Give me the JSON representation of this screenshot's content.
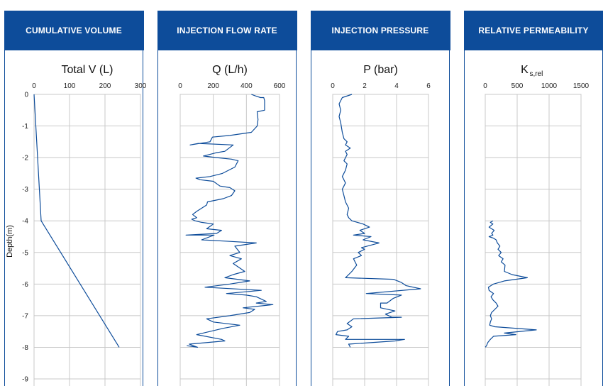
{
  "colors": {
    "header_bg": "#0d4c9a",
    "series": "#0d4c9a",
    "grid": "#c8c8c8"
  },
  "y_axis": {
    "label": "Depth(m)",
    "ticks": [
      0,
      -1,
      -2,
      -3,
      -4,
      -5,
      -6,
      -7,
      -8,
      -9
    ],
    "range": [
      0,
      -9
    ]
  },
  "chart_data": [
    {
      "type": "line",
      "header": "CUMULATIVE VOLUME",
      "title": "Total V (L)",
      "x_ticks": [
        0,
        100,
        200,
        300
      ],
      "xlim": [
        0,
        300
      ],
      "series": [
        {
          "points": [
            [
              0,
              0
            ],
            [
              20,
              -4
            ],
            [
              240,
              -8
            ]
          ]
        }
      ]
    },
    {
      "type": "line",
      "header": "INJECTION FLOW RATE",
      "title": "Q (L/h)",
      "x_ticks": [
        0,
        200,
        400,
        600
      ],
      "xlim": [
        0,
        600
      ],
      "series": [
        {
          "points": [
            [
              430,
              0
            ],
            [
              455,
              -0.05
            ],
            [
              485,
              -0.1
            ],
            [
              505,
              -0.1
            ],
            [
              510,
              -0.2
            ],
            [
              510,
              -0.5
            ],
            [
              465,
              -0.55
            ],
            [
              470,
              -0.8
            ],
            [
              465,
              -1.0
            ],
            [
              430,
              -1.2
            ],
            [
              300,
              -1.3
            ],
            [
              195,
              -1.35
            ],
            [
              180,
              -1.5
            ],
            [
              60,
              -1.6
            ],
            [
              110,
              -1.55
            ],
            [
              320,
              -1.6
            ],
            [
              270,
              -1.8
            ],
            [
              215,
              -1.85
            ],
            [
              140,
              -1.95
            ],
            [
              220,
              -2.0
            ],
            [
              310,
              -2.05
            ],
            [
              350,
              -2.1
            ],
            [
              330,
              -2.3
            ],
            [
              255,
              -2.5
            ],
            [
              180,
              -2.6
            ],
            [
              95,
              -2.65
            ],
            [
              120,
              -2.7
            ],
            [
              200,
              -2.75
            ],
            [
              240,
              -2.9
            ],
            [
              300,
              -2.95
            ],
            [
              330,
              -3.05
            ],
            [
              310,
              -3.2
            ],
            [
              260,
              -3.3
            ],
            [
              165,
              -3.4
            ],
            [
              160,
              -3.5
            ],
            [
              130,
              -3.6
            ],
            [
              100,
              -3.7
            ],
            [
              75,
              -3.8
            ],
            [
              100,
              -3.9
            ],
            [
              70,
              -3.95
            ],
            [
              90,
              -4.0
            ],
            [
              130,
              -4.05
            ],
            [
              200,
              -4.1
            ],
            [
              160,
              -4.25
            ],
            [
              250,
              -4.3
            ],
            [
              220,
              -4.4
            ],
            [
              35,
              -4.45
            ],
            [
              205,
              -4.45
            ],
            [
              130,
              -4.6
            ],
            [
              300,
              -4.65
            ],
            [
              460,
              -4.7
            ],
            [
              330,
              -4.8
            ],
            [
              360,
              -5.0
            ],
            [
              300,
              -5.1
            ],
            [
              370,
              -5.2
            ],
            [
              320,
              -5.35
            ],
            [
              390,
              -5.6
            ],
            [
              320,
              -5.7
            ],
            [
              270,
              -5.8
            ],
            [
              420,
              -5.9
            ],
            [
              300,
              -6.0
            ],
            [
              150,
              -6.1
            ],
            [
              490,
              -6.2
            ],
            [
              280,
              -6.3
            ],
            [
              400,
              -6.35
            ],
            [
              460,
              -6.4
            ],
            [
              520,
              -6.55
            ],
            [
              460,
              -6.6
            ],
            [
              560,
              -6.65
            ],
            [
              380,
              -6.75
            ],
            [
              450,
              -6.8
            ],
            [
              420,
              -6.9
            ],
            [
              300,
              -7.0
            ],
            [
              160,
              -7.1
            ],
            [
              200,
              -7.2
            ],
            [
              360,
              -7.3
            ],
            [
              260,
              -7.4
            ],
            [
              100,
              -7.6
            ],
            [
              250,
              -7.75
            ],
            [
              270,
              -7.8
            ],
            [
              55,
              -7.9
            ],
            [
              105,
              -8.0
            ],
            [
              40,
              -7.95
            ]
          ]
        }
      ]
    },
    {
      "type": "line",
      "header": "INJECTION PRESSURE",
      "title": "P (bar)",
      "x_ticks": [
        0,
        2,
        4,
        6
      ],
      "xlim": [
        0,
        6
      ],
      "series": [
        {
          "points": [
            [
              1.2,
              0
            ],
            [
              0.6,
              -0.1
            ],
            [
              0.4,
              -0.3
            ],
            [
              0.5,
              -0.5
            ],
            [
              0.4,
              -0.7
            ],
            [
              0.5,
              -0.9
            ],
            [
              0.6,
              -1.2
            ],
            [
              0.7,
              -1.4
            ],
            [
              0.9,
              -1.5
            ],
            [
              0.8,
              -1.6
            ],
            [
              1.1,
              -1.7
            ],
            [
              0.8,
              -1.8
            ],
            [
              0.9,
              -1.9
            ],
            [
              0.7,
              -2.1
            ],
            [
              0.9,
              -2.2
            ],
            [
              0.8,
              -2.4
            ],
            [
              0.6,
              -2.6
            ],
            [
              0.8,
              -2.8
            ],
            [
              0.6,
              -3.0
            ],
            [
              0.7,
              -3.2
            ],
            [
              0.8,
              -3.4
            ],
            [
              1.0,
              -3.6
            ],
            [
              0.9,
              -3.8
            ],
            [
              1.0,
              -3.9
            ],
            [
              1.2,
              -4.0
            ],
            [
              1.9,
              -4.1
            ],
            [
              2.3,
              -4.2
            ],
            [
              1.7,
              -4.3
            ],
            [
              2.0,
              -4.4
            ],
            [
              1.3,
              -4.45
            ],
            [
              2.4,
              -4.5
            ],
            [
              1.9,
              -4.6
            ],
            [
              2.9,
              -4.7
            ],
            [
              1.8,
              -4.85
            ],
            [
              2.0,
              -4.9
            ],
            [
              1.6,
              -5.0
            ],
            [
              1.8,
              -5.1
            ],
            [
              1.3,
              -5.2
            ],
            [
              1.5,
              -5.4
            ],
            [
              1.2,
              -5.6
            ],
            [
              0.8,
              -5.8
            ],
            [
              3.8,
              -5.85
            ],
            [
              4.3,
              -5.95
            ],
            [
              4.6,
              -6.05
            ],
            [
              5.5,
              -6.15
            ],
            [
              2.1,
              -6.3
            ],
            [
              4.3,
              -6.35
            ],
            [
              3.8,
              -6.45
            ],
            [
              3.4,
              -6.6
            ],
            [
              3.0,
              -6.6
            ],
            [
              3.0,
              -6.75
            ],
            [
              3.9,
              -6.85
            ],
            [
              3.3,
              -6.95
            ],
            [
              3.7,
              -7.05
            ],
            [
              4.3,
              -7.05
            ],
            [
              1.3,
              -7.1
            ],
            [
              0.9,
              -7.25
            ],
            [
              1.2,
              -7.35
            ],
            [
              0.9,
              -7.45
            ],
            [
              0.3,
              -7.5
            ],
            [
              0.2,
              -7.6
            ],
            [
              1.0,
              -7.65
            ],
            [
              0.8,
              -7.75
            ],
            [
              4.5,
              -7.75
            ],
            [
              3.9,
              -7.8
            ],
            [
              1.0,
              -7.9
            ],
            [
              1.1,
              -8.0
            ]
          ]
        }
      ]
    },
    {
      "type": "line",
      "header": "RELATIVE PERMEABILITY",
      "title": "K",
      "title_sub": "s,rel",
      "x_ticks": [
        0,
        500,
        1000,
        1500
      ],
      "xlim": [
        0,
        1500
      ],
      "series": [
        {
          "points": [
            [
              120,
              -4.0
            ],
            [
              80,
              -4.05
            ],
            [
              120,
              -4.1
            ],
            [
              60,
              -4.2
            ],
            [
              140,
              -4.3
            ],
            [
              100,
              -4.4
            ],
            [
              120,
              -4.45
            ],
            [
              60,
              -4.5
            ],
            [
              130,
              -4.55
            ],
            [
              170,
              -4.6
            ],
            [
              190,
              -4.7
            ],
            [
              230,
              -4.8
            ],
            [
              200,
              -4.9
            ],
            [
              250,
              -5.0
            ],
            [
              210,
              -5.1
            ],
            [
              280,
              -5.2
            ],
            [
              250,
              -5.3
            ],
            [
              310,
              -5.4
            ],
            [
              300,
              -5.6
            ],
            [
              420,
              -5.7
            ],
            [
              660,
              -5.8
            ],
            [
              300,
              -5.9
            ],
            [
              130,
              -6.0
            ],
            [
              50,
              -6.1
            ],
            [
              60,
              -6.2
            ],
            [
              130,
              -6.3
            ],
            [
              90,
              -6.4
            ],
            [
              120,
              -6.5
            ],
            [
              170,
              -6.6
            ],
            [
              200,
              -6.7
            ],
            [
              150,
              -6.8
            ],
            [
              100,
              -6.9
            ],
            [
              80,
              -7.0
            ],
            [
              100,
              -7.1
            ],
            [
              80,
              -7.2
            ],
            [
              70,
              -7.3
            ],
            [
              150,
              -7.35
            ],
            [
              800,
              -7.45
            ],
            [
              300,
              -7.55
            ],
            [
              480,
              -7.6
            ],
            [
              130,
              -7.65
            ],
            [
              80,
              -7.75
            ],
            [
              40,
              -7.85
            ],
            [
              20,
              -7.95
            ],
            [
              0,
              -8.0
            ]
          ]
        }
      ]
    }
  ]
}
